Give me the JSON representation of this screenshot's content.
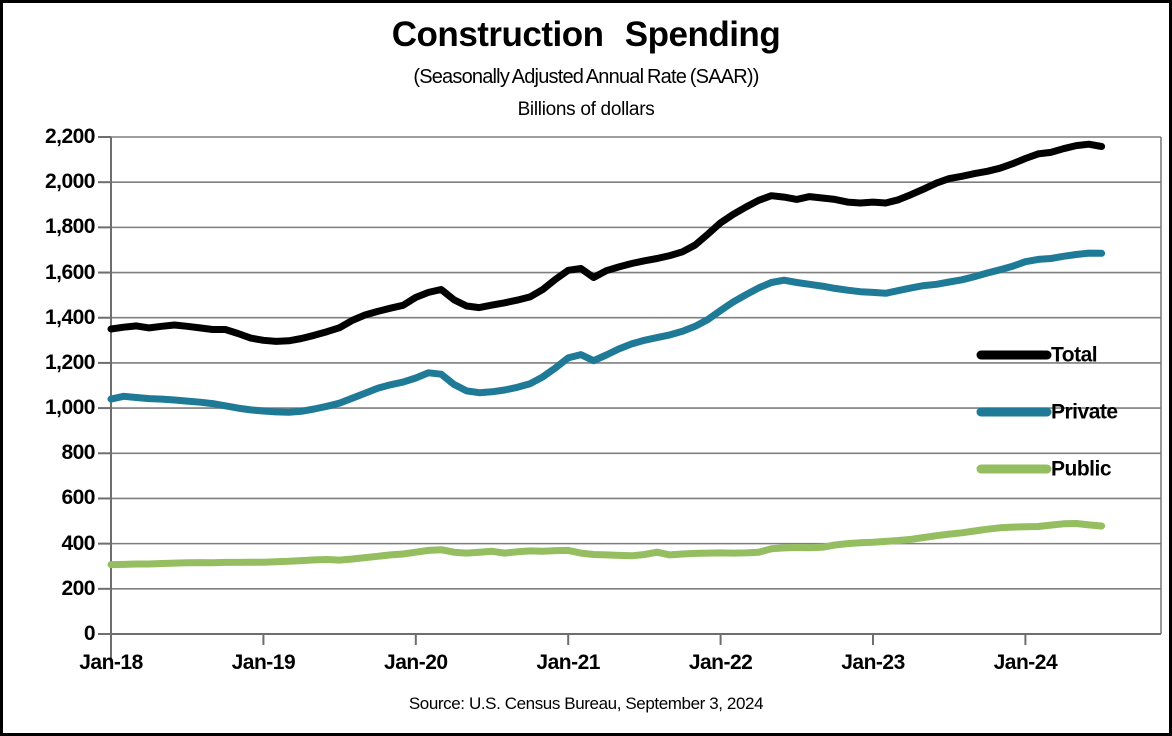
{
  "chart_data": {
    "type": "line",
    "title": "Construction Spending",
    "subtitle": "(Seasonally Adjusted Annual Rate (SAAR))",
    "units_label": "Billions of dollars",
    "source": "Source: U.S. Census Bureau, September 3, 2024",
    "x_start": "Jan-2018",
    "x_end": "Jul-2024",
    "frequency": "monthly",
    "x_tick_labels": [
      "Jan-18",
      "Jan-19",
      "Jan-20",
      "Jan-21",
      "Jan-22",
      "Jan-23",
      "Jan-24"
    ],
    "y_tick_labels": [
      "0",
      "200",
      "400",
      "600",
      "800",
      "1,000",
      "1,200",
      "1,400",
      "1,600",
      "1,800",
      "2,000",
      "2,200"
    ],
    "ylim": [
      0,
      2200
    ],
    "y_tick_step": 200,
    "grid": true,
    "legend_position": "inside-right",
    "series": [
      {
        "name": "Total",
        "color": "#000000",
        "values": [
          1350,
          1358,
          1364,
          1355,
          1362,
          1368,
          1362,
          1355,
          1348,
          1348,
          1330,
          1310,
          1300,
          1295,
          1298,
          1308,
          1322,
          1338,
          1356,
          1388,
          1412,
          1428,
          1442,
          1455,
          1490,
          1512,
          1525,
          1480,
          1452,
          1445,
          1456,
          1466,
          1478,
          1492,
          1525,
          1570,
          1610,
          1618,
          1578,
          1608,
          1625,
          1640,
          1652,
          1662,
          1675,
          1692,
          1722,
          1770,
          1820,
          1858,
          1890,
          1920,
          1940,
          1934,
          1924,
          1936,
          1930,
          1924,
          1912,
          1908,
          1912,
          1908,
          1922,
          1945,
          1970,
          1996,
          2016,
          2026,
          2038,
          2048,
          2062,
          2082,
          2105,
          2125,
          2132,
          2148,
          2162,
          2168,
          2158
        ]
      },
      {
        "name": "Private",
        "color": "#1E7A96",
        "values": [
          1040,
          1052,
          1047,
          1042,
          1040,
          1036,
          1031,
          1026,
          1020,
          1010,
          1000,
          992,
          987,
          983,
          982,
          986,
          996,
          1008,
          1022,
          1044,
          1066,
          1088,
          1103,
          1115,
          1133,
          1156,
          1150,
          1105,
          1076,
          1068,
          1072,
          1080,
          1092,
          1108,
          1138,
          1178,
          1222,
          1237,
          1210,
          1235,
          1262,
          1284,
          1300,
          1312,
          1324,
          1340,
          1362,
          1392,
          1432,
          1470,
          1502,
          1532,
          1556,
          1566,
          1556,
          1548,
          1540,
          1530,
          1522,
          1515,
          1512,
          1508,
          1520,
          1532,
          1542,
          1548,
          1558,
          1568,
          1582,
          1598,
          1612,
          1628,
          1648,
          1658,
          1662,
          1672,
          1680,
          1686,
          1685
        ]
      },
      {
        "name": "Public",
        "color": "#94BE60",
        "values": [
          307,
          308,
          310,
          310,
          312,
          314,
          315,
          316,
          315,
          317,
          317,
          318,
          318,
          320,
          322,
          325,
          328,
          330,
          327,
          332,
          338,
          344,
          350,
          354,
          362,
          370,
          373,
          362,
          358,
          362,
          366,
          358,
          364,
          368,
          366,
          369,
          370,
          358,
          352,
          350,
          348,
          346,
          352,
          362,
          350,
          354,
          357,
          358,
          359,
          358,
          359,
          362,
          377,
          381,
          383,
          382,
          384,
          394,
          400,
          404,
          406,
          410,
          414,
          419,
          427,
          435,
          442,
          448,
          456,
          464,
          470,
          473,
          475,
          476,
          482,
          488,
          489,
          483,
          478
        ]
      }
    ],
    "style": {
      "grid_color": "#7f7f7f",
      "axis_color": "#6e6e6e",
      "line_width": 7
    }
  }
}
